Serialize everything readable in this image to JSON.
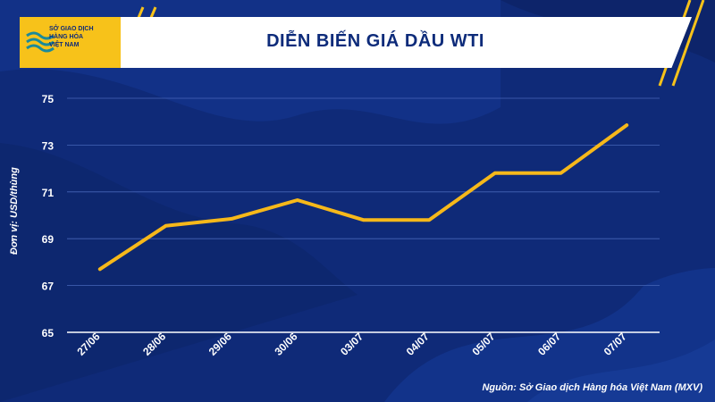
{
  "logo": {
    "lines": [
      "SỞ GIAO DỊCH",
      "HÀNG HÓA",
      "VIỆT NAM"
    ]
  },
  "unit_label": "Đơn vị: USD/thùng",
  "source": "Nguồn: Sở Giao dịch Hàng hóa Việt Nam (MXV)",
  "colors": {
    "background": "#0f2a78",
    "line": "#f6b81a",
    "accent": "#f7c21a"
  },
  "chart_data": {
    "type": "line",
    "title": "DIỄN BIẾN GIÁ DẦU WTI",
    "xlabel": "",
    "ylabel": "Đơn vị: USD/thùng",
    "categories": [
      "27/06",
      "28/06",
      "29/06",
      "30/06",
      "03/07",
      "04/07",
      "05/07",
      "06/07",
      "07/07"
    ],
    "values": [
      67.7,
      69.55,
      69.85,
      70.65,
      69.8,
      69.8,
      71.8,
      71.8,
      73.85
    ],
    "yticks": [
      65,
      67,
      69,
      71,
      73,
      75
    ],
    "ylim": [
      65,
      75
    ],
    "grid": true,
    "legend": "none"
  }
}
